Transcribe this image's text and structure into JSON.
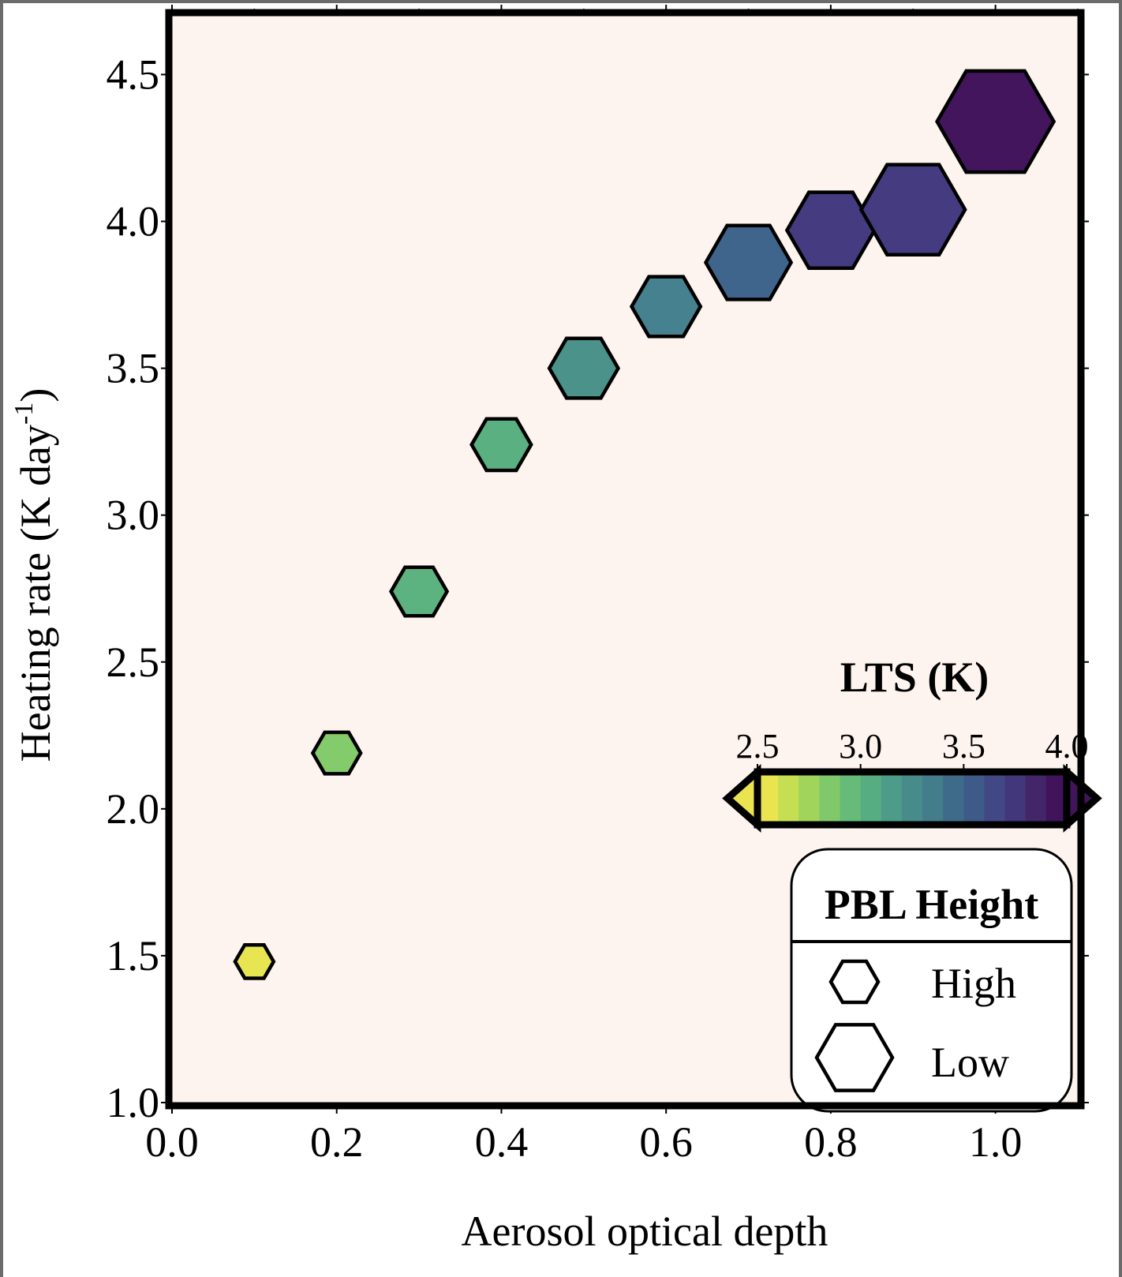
{
  "chart_data": {
    "type": "scatter",
    "title": "",
    "xlabel": "Aerosol optical depth",
    "ylabel": "Heating rate (K day",
    "ylabel_superscript": "-1",
    "ylabel_suffix": ")",
    "xlim": [
      0,
      1.1
    ],
    "ylim": [
      1.0,
      4.7
    ],
    "x_ticks": [
      0.0,
      0.2,
      0.4,
      0.6,
      0.8,
      1.0
    ],
    "x_tick_labels": [
      "0.0",
      "0.2",
      "0.4",
      "0.6",
      "0.8",
      "1.0"
    ],
    "y_ticks": [
      1.0,
      1.5,
      2.0,
      2.5,
      3.0,
      3.5,
      4.0,
      4.5
    ],
    "y_tick_labels": [
      "1.0",
      "1.5",
      "2.0",
      "2.5",
      "3.0",
      "3.5",
      "4.0",
      "4.5"
    ],
    "grid": false,
    "background_color": "#fdf4ef",
    "marker": "hexagon",
    "points": [
      {
        "x": 0.1,
        "y": 1.48,
        "lts": 2.5,
        "size": 0.33,
        "color": "#e8e553"
      },
      {
        "x": 0.2,
        "y": 2.19,
        "lts": 2.85,
        "size": 0.41,
        "color": "#84cb6b"
      },
      {
        "x": 0.3,
        "y": 2.74,
        "lts": 3.0,
        "size": 0.48,
        "color": "#5cb37f"
      },
      {
        "x": 0.4,
        "y": 3.24,
        "lts": 3.05,
        "size": 0.51,
        "color": "#5ab080"
      },
      {
        "x": 0.5,
        "y": 3.5,
        "lts": 3.25,
        "size": 0.59,
        "color": "#4a928a"
      },
      {
        "x": 0.6,
        "y": 3.71,
        "lts": 3.35,
        "size": 0.59,
        "color": "#45818e"
      },
      {
        "x": 0.7,
        "y": 3.86,
        "lts": 3.55,
        "size": 0.73,
        "color": "#3f658c"
      },
      {
        "x": 0.8,
        "y": 3.97,
        "lts": 3.75,
        "size": 0.75,
        "color": "#443b80"
      },
      {
        "x": 0.9,
        "y": 4.04,
        "lts": 3.75,
        "size": 0.89,
        "color": "#443b80"
      },
      {
        "x": 1.0,
        "y": 4.34,
        "lts": 4.0,
        "size": 1.0,
        "color": "#42155c"
      }
    ],
    "colorbar": {
      "title": "LTS (K)",
      "orientation": "horizontal",
      "location": "lower-right",
      "extend": "both",
      "range": [
        2.5,
        4.0
      ],
      "ticks": [
        2.5,
        3.0,
        3.5,
        4.0
      ],
      "tick_labels": [
        "2.5",
        "3.0",
        "3.5",
        "4.0"
      ],
      "colors": [
        "#e9e44f",
        "#c6df52",
        "#a0d45a",
        "#80c96b",
        "#66bb78",
        "#56ad82",
        "#4d9c89",
        "#478b8b",
        "#437c8b",
        "#3f6b8a",
        "#3e5a89",
        "#414883",
        "#42377a",
        "#432669",
        "#41135a"
      ],
      "extend_low_color": "#e9e44f",
      "extend_high_color": "#40155a"
    },
    "legend": {
      "title": "PBL Height",
      "location": "lower-right",
      "entries": [
        {
          "label": "High",
          "marker": "hexagon-small"
        },
        {
          "label": "Low",
          "marker": "hexagon-large"
        }
      ]
    }
  }
}
